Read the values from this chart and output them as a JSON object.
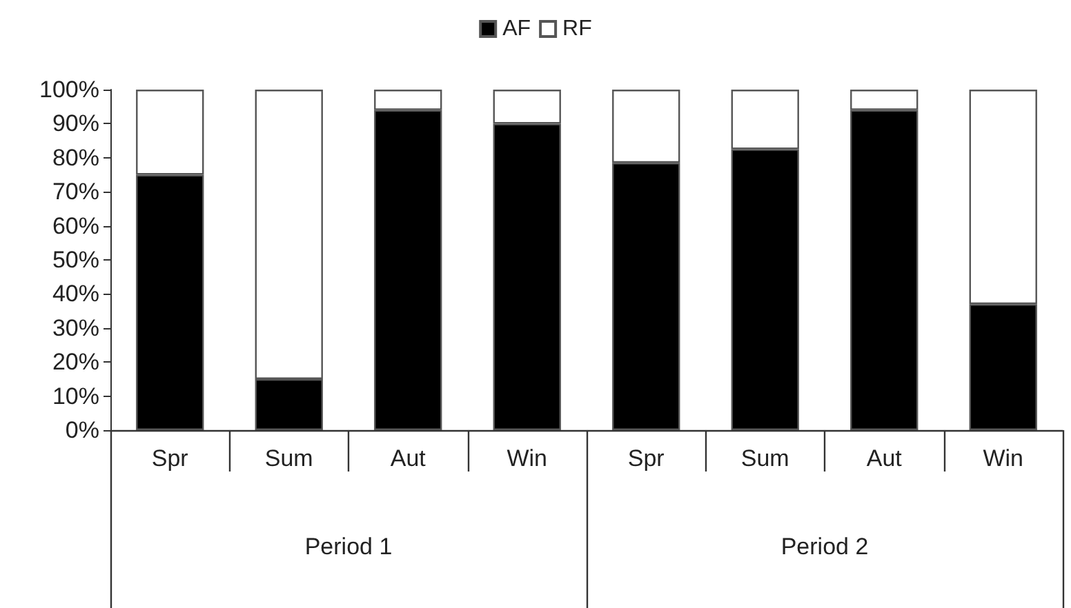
{
  "chart_data": {
    "type": "bar",
    "stacked": true,
    "categories": [
      "Spr",
      "Sum",
      "Aut",
      "Win",
      "Spr",
      "Sum",
      "Aut",
      "Win"
    ],
    "series": [
      {
        "name": "AF",
        "color": "#000000",
        "values": [
          75,
          15,
          94,
          90,
          78.5,
          82.5,
          94,
          37
        ]
      },
      {
        "name": "RF",
        "color": "#ffffff",
        "values": [
          25,
          85,
          6,
          10,
          21.5,
          17.5,
          6,
          63
        ]
      }
    ],
    "annotations": [
      "Period 1",
      "Period 2"
    ],
    "ylim": [
      0,
      100
    ],
    "yticks": [
      {
        "value": 0,
        "label": "0%"
      },
      {
        "value": 10,
        "label": "10%"
      },
      {
        "value": 20,
        "label": "20%"
      },
      {
        "value": 30,
        "label": "30%"
      },
      {
        "value": 40,
        "label": "40%"
      },
      {
        "value": 50,
        "label": "50%"
      },
      {
        "value": 60,
        "label": "60%"
      },
      {
        "value": 70,
        "label": "70%"
      },
      {
        "value": 80,
        "label": "80%"
      },
      {
        "value": 90,
        "label": "90%"
      },
      {
        "value": 100,
        "label": "100%"
      }
    ],
    "grid": false,
    "legend": "top"
  }
}
